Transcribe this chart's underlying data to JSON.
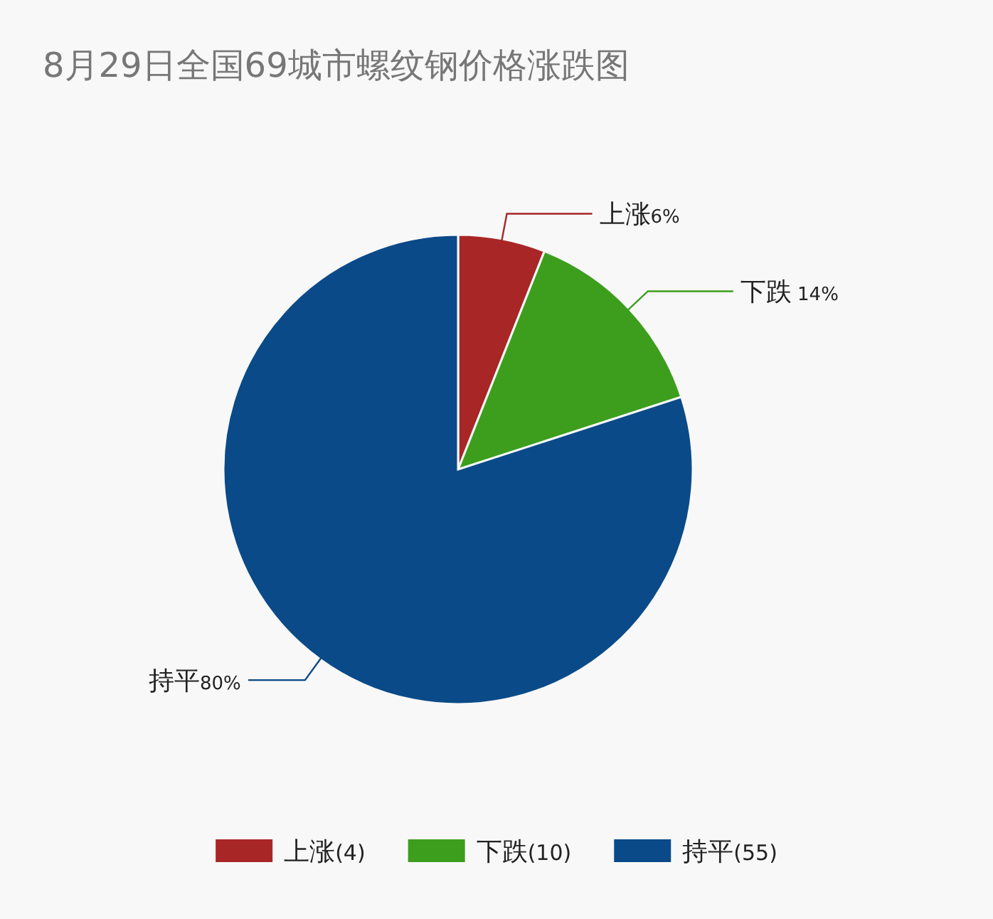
{
  "chart_data": {
    "type": "pie",
    "title": "8月29日全国69城市螺纹钢价格涨跌图",
    "categories": [
      "上涨(4)",
      "下跌(10)",
      "持平(55)"
    ],
    "values": [
      6,
      14,
      80
    ],
    "value_labels": [
      "上涨6%",
      "下跌 14%",
      "持平80%"
    ],
    "colors": [
      "#a82626",
      "#3d9e1e",
      "#0a4a88"
    ],
    "legend": "bottom"
  }
}
